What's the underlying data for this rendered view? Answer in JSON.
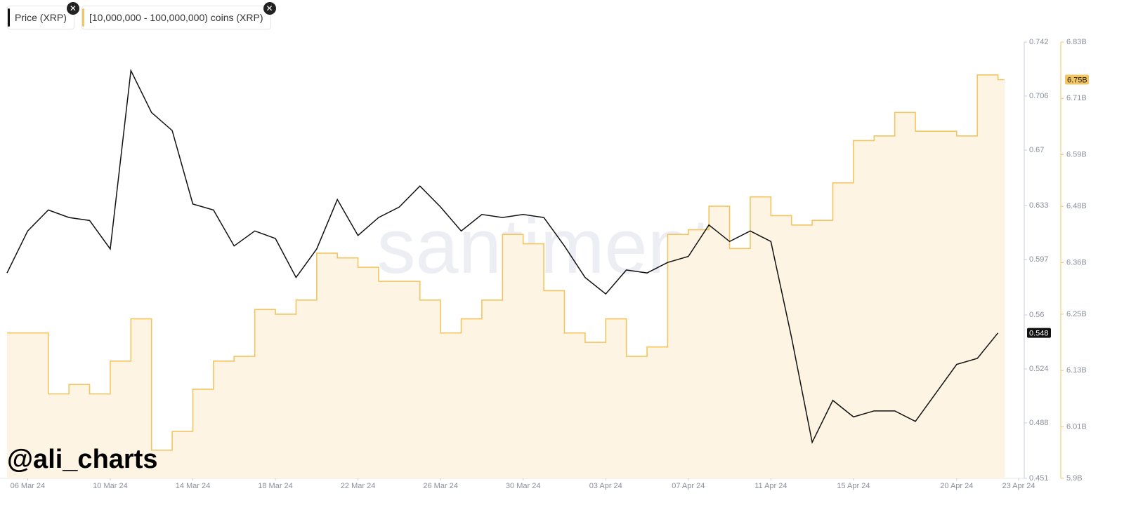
{
  "chart_data": {
    "type": "line",
    "x": [
      "2024-03-05",
      "2024-03-06",
      "2024-03-07",
      "2024-03-08",
      "2024-03-09",
      "2024-03-10",
      "2024-03-11",
      "2024-03-12",
      "2024-03-13",
      "2024-03-14",
      "2024-03-15",
      "2024-03-16",
      "2024-03-17",
      "2024-03-18",
      "2024-03-19",
      "2024-03-20",
      "2024-03-21",
      "2024-03-22",
      "2024-03-23",
      "2024-03-24",
      "2024-03-25",
      "2024-03-26",
      "2024-03-27",
      "2024-03-28",
      "2024-03-29",
      "2024-03-30",
      "2024-03-31",
      "2024-04-01",
      "2024-04-02",
      "2024-04-03",
      "2024-04-04",
      "2024-04-05",
      "2024-04-06",
      "2024-04-07",
      "2024-04-08",
      "2024-04-09",
      "2024-04-10",
      "2024-04-11",
      "2024-04-12",
      "2024-04-13",
      "2024-04-14",
      "2024-04-15",
      "2024-04-16",
      "2024-04-17",
      "2024-04-18",
      "2024-04-19",
      "2024-04-20",
      "2024-04-21",
      "2024-04-22"
    ],
    "series": [
      {
        "name": "Price (XRP)",
        "color": "#111111",
        "values": [
          0.588,
          0.616,
          0.63,
          0.625,
          0.623,
          0.604,
          0.723,
          0.695,
          0.683,
          0.634,
          0.63,
          0.606,
          0.616,
          0.611,
          0.585,
          0.604,
          0.637,
          0.613,
          0.625,
          0.632,
          0.646,
          0.632,
          0.616,
          0.627,
          0.625,
          0.627,
          0.625,
          0.606,
          0.585,
          0.574,
          0.59,
          0.588,
          0.595,
          0.599,
          0.62,
          0.609,
          0.616,
          0.609,
          0.545,
          0.475,
          0.503,
          0.492,
          0.496,
          0.496,
          0.489,
          0.508,
          0.527,
          0.531,
          0.548
        ]
      },
      {
        "name": "[10,000,000 - 100,000,000) coins (XRP)",
        "color": "#f3c560",
        "axis": "y2",
        "values": [
          6210000000,
          6210000000,
          6080000000,
          6100000000,
          6080000000,
          6150000000,
          6240000000,
          5960000000,
          6000000000,
          6090000000,
          6150000000,
          6160000000,
          6260000000,
          6250000000,
          6280000000,
          6380000000,
          6370000000,
          6350000000,
          6320000000,
          6320000000,
          6280000000,
          6210000000,
          6240000000,
          6280000000,
          6420000000,
          6400000000,
          6300000000,
          6210000000,
          6190000000,
          6240000000,
          6160000000,
          6180000000,
          6420000000,
          6430000000,
          6480000000,
          6390000000,
          6500000000,
          6460000000,
          6440000000,
          6450000000,
          6530000000,
          6620000000,
          6630000000,
          6680000000,
          6640000000,
          6640000000,
          6630000000,
          6760000000,
          6750000000
        ],
        "value_labels": [
          null,
          null,
          null,
          null,
          null,
          null,
          null,
          null,
          null,
          null,
          null,
          null,
          null,
          null,
          null,
          null,
          null,
          null,
          null,
          null,
          null,
          null,
          null,
          null,
          null,
          null,
          null,
          null,
          null,
          null,
          null,
          null,
          null,
          null,
          null,
          null,
          null,
          null,
          null,
          null,
          null,
          null,
          null,
          null,
          null,
          null,
          null,
          null,
          "6.75B"
        ]
      }
    ],
    "xlim": [
      "2024-03-05",
      "2024-04-23"
    ],
    "xticks": [
      {
        "value": "2024-03-06",
        "label": "06 Mar 24"
      },
      {
        "value": "2024-03-10",
        "label": "10 Mar 24"
      },
      {
        "value": "2024-03-14",
        "label": "14 Mar 24"
      },
      {
        "value": "2024-03-18",
        "label": "18 Mar 24"
      },
      {
        "value": "2024-03-22",
        "label": "22 Mar 24"
      },
      {
        "value": "2024-03-26",
        "label": "26 Mar 24"
      },
      {
        "value": "2024-03-30",
        "label": "30 Mar 24"
      },
      {
        "value": "2024-04-03",
        "label": "03 Apr 24"
      },
      {
        "value": "2024-04-07",
        "label": "07 Apr 24"
      },
      {
        "value": "2024-04-11",
        "label": "11 Apr 24"
      },
      {
        "value": "2024-04-15",
        "label": "15 Apr 24"
      },
      {
        "value": "2024-04-20",
        "label": "20 Apr 24"
      },
      {
        "value": "2024-04-23",
        "label": "23 Apr 24"
      }
    ],
    "ylim": [
      0.451,
      0.742
    ],
    "yticks": [
      0.742,
      0.706,
      0.67,
      0.633,
      0.597,
      0.56,
      0.524,
      0.488,
      0.451
    ],
    "y2lim": [
      5900000000,
      6830000000
    ],
    "y2ticks": [
      {
        "value": 6830000000,
        "label": "6.83B"
      },
      {
        "value": 6710000000,
        "label": "6.71B"
      },
      {
        "value": 6590000000,
        "label": "6.59B"
      },
      {
        "value": 6480000000,
        "label": "6.48B"
      },
      {
        "value": 6360000000,
        "label": "6.36B"
      },
      {
        "value": 6250000000,
        "label": "6.25B"
      },
      {
        "value": 6130000000,
        "label": "6.13B"
      },
      {
        "value": 6010000000,
        "label": "6.01B"
      },
      {
        "value": 5900000000,
        "label": "5.9B"
      }
    ],
    "watermark": "santiment",
    "annotation": "@ali_charts"
  }
}
